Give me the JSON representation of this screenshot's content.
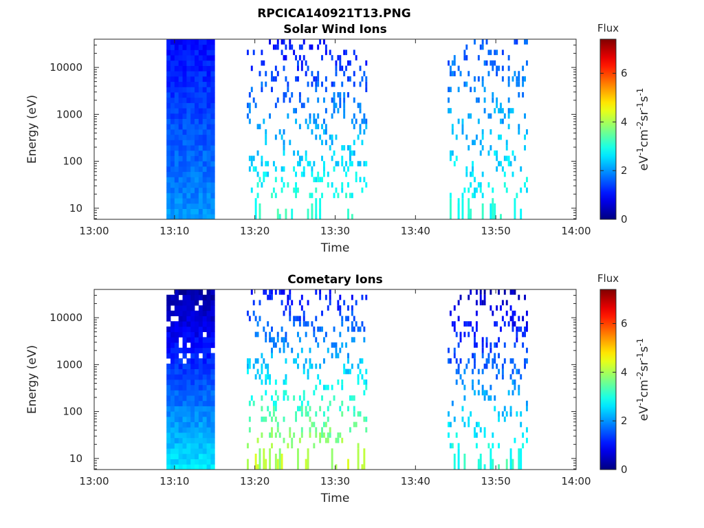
{
  "figure_title": "RPCICA140921T13.PNG",
  "chart_data": [
    {
      "type": "heatmap",
      "title": "Solar Wind Ions",
      "xlabel": "Time",
      "ylabel": "Energy (eV)",
      "x_ticks": [
        "13:00",
        "13:10",
        "13:20",
        "13:30",
        "13:40",
        "13:50",
        "14:00"
      ],
      "xlim": [
        "13:00",
        "14:00"
      ],
      "y_scale": "log",
      "y_ticks": [
        "10",
        "100",
        "1000",
        "10000"
      ],
      "ylim": [
        5.8,
        40000
      ],
      "colorbar": {
        "title": "Flux",
        "label": "eV-1cm-2sr-1s-1",
        "ticks": [
          "0",
          "2",
          "4",
          "6"
        ],
        "range": [
          0,
          7.4
        ],
        "colormap": "jet"
      },
      "data_description_dense_blocks": [
        {
          "t_start": "13:09",
          "t_end": "13:15",
          "e_min": 6,
          "e_max": 40000,
          "flux_high_energy": 1.0,
          "flux_low_energy": 2.0
        }
      ],
      "scatter_segments": [
        {
          "t_start": "13:19",
          "t_end": "13:34",
          "e_min": 6,
          "e_max": 40000,
          "flux_range": [
            1,
            3.2
          ]
        },
        {
          "t_start": "13:44",
          "t_end": "13:54",
          "e_min": 6,
          "e_max": 40000,
          "flux_range": [
            1.5,
            3.0
          ]
        }
      ]
    },
    {
      "type": "heatmap",
      "title": "Cometary Ions",
      "xlabel": "Time",
      "ylabel": "Energy (eV)",
      "x_ticks": [
        "13:00",
        "13:10",
        "13:20",
        "13:30",
        "13:40",
        "13:50",
        "14:00"
      ],
      "xlim": [
        "13:00",
        "14:00"
      ],
      "y_scale": "log",
      "y_ticks": [
        "10",
        "100",
        "1000",
        "10000"
      ],
      "ylim": [
        5.8,
        40000
      ],
      "colorbar": {
        "title": "Flux",
        "label": "eV-1cm-2sr-1s-1",
        "ticks": [
          "0",
          "2",
          "4",
          "6"
        ],
        "range": [
          0,
          7.4
        ],
        "colormap": "jet"
      },
      "data_description_dense_blocks": [
        {
          "t_start": "13:09",
          "t_end": "13:15",
          "e_min": 6,
          "e_max": 40000,
          "flux_high_energy": 0.3,
          "flux_low_energy": 2.6
        }
      ],
      "scatter_segments": [
        {
          "t_start": "13:19",
          "t_end": "13:34",
          "e_min": 6,
          "e_max": 40000,
          "flux_range": [
            1,
            4.3
          ]
        },
        {
          "t_start": "13:44",
          "t_end": "13:54",
          "e_min": 6,
          "e_max": 40000,
          "flux_range": [
            0.5,
            3.2
          ]
        }
      ]
    }
  ]
}
